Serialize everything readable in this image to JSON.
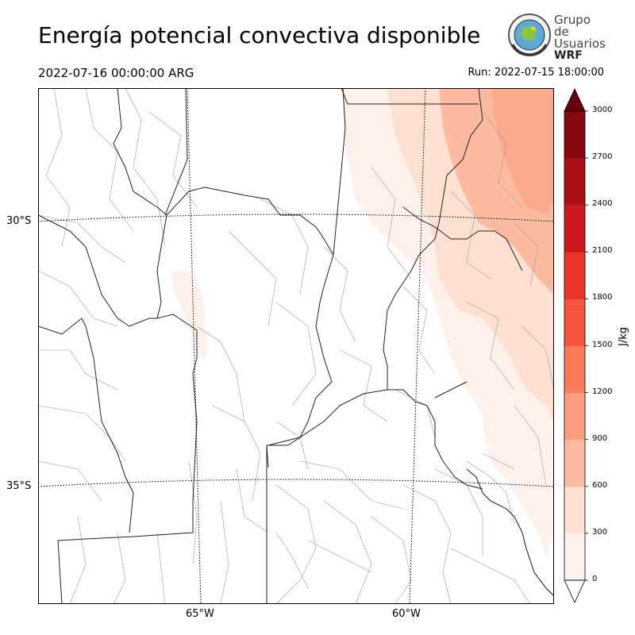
{
  "title": "Energía potencial convectiva disponible",
  "valid_time": "2022-07-16 00:00:00 ARG",
  "run_time": "Run: 2022-07-15 18:00:00",
  "logo": {
    "line1": "Grupo de",
    "line2": "Usuarios",
    "line3": "WRF"
  },
  "lat_labels": [
    "30°S",
    "35°S"
  ],
  "lon_labels": [
    "65°W",
    "60°W"
  ],
  "colorbar": {
    "unit": "J/kg",
    "ticks": [
      "0",
      "300",
      "600",
      "900",
      "1200",
      "1500",
      "1800",
      "2100",
      "2400",
      "2700",
      "3000"
    ],
    "colors": [
      "#fff0eb",
      "#fee0d2",
      "#fcbba1",
      "#fc9f81",
      "#fb7b5b",
      "#f5553c",
      "#e93429",
      "#cb181d",
      "#ab1016",
      "#860811"
    ],
    "over_color": "#67000d",
    "under_color": "#ffffff"
  },
  "colors": {
    "frame": "#000000",
    "border": "#333333",
    "dept": "#9a9a9a"
  }
}
